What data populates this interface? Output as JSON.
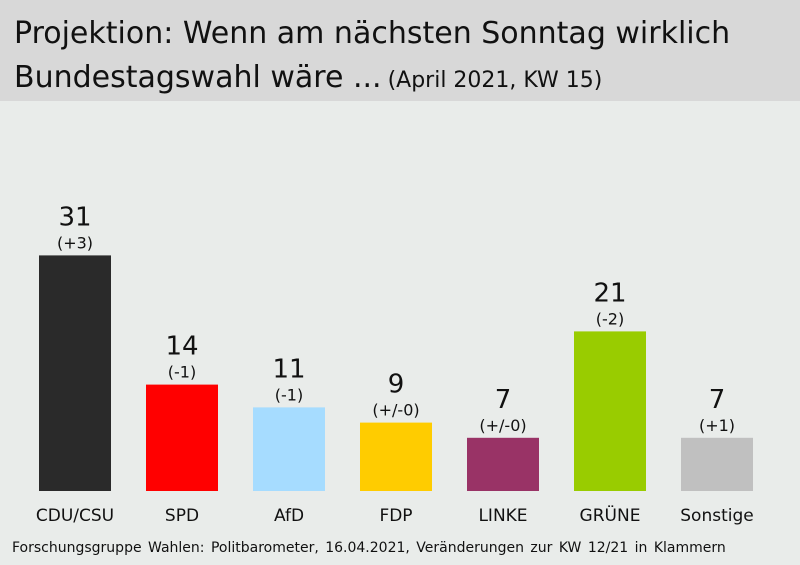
{
  "header": {
    "title_line1": "Projektion: Wenn am nächsten Sonntag wirklich",
    "title_line2": "Bundestagswahl wäre ...",
    "subtitle": "(April 2021, KW 15)"
  },
  "chart_data": {
    "type": "bar",
    "title": "Projektion: Wenn am nächsten Sonntag wirklich Bundestagswahl wäre ...",
    "subtitle": "(April 2021, KW 15)",
    "categories": [
      "CDU/CSU",
      "SPD",
      "AfD",
      "FDP",
      "LINKE",
      "GRÜNE",
      "Sonstige"
    ],
    "values": [
      31,
      14,
      11,
      9,
      7,
      21,
      7
    ],
    "changes": [
      "(+3)",
      "(-1)",
      "(-1)",
      "(+/-0)",
      "(+/-0)",
      "(-2)",
      "(+1)"
    ],
    "colors": [
      "#2a2a2a",
      "#ff0000",
      "#a6dcff",
      "#ffcc00",
      "#993366",
      "#99cc00",
      "#c0c0c0"
    ],
    "ylim": [
      0,
      35
    ],
    "grid": false
  },
  "footer": {
    "source": "Forschungsgruppe Wahlen: Politbarometer, 16.04.2021, Veränderungen zur KW 12/21 in Klammern"
  }
}
